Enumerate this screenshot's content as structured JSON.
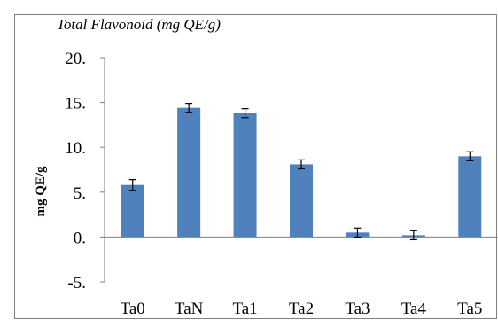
{
  "chart_data": {
    "type": "bar",
    "title": "Total Flavonoid (mg QE/g)",
    "xlabel": "",
    "ylabel": "mg QE/g",
    "categories": [
      "Ta0",
      "TaN",
      "Ta1",
      "Ta2",
      "Ta3",
      "Ta4",
      "Ta5"
    ],
    "values": [
      5.8,
      14.4,
      13.8,
      8.1,
      0.5,
      0.2,
      9.0
    ],
    "errors": [
      0.6,
      0.5,
      0.5,
      0.5,
      0.5,
      0.5,
      0.5
    ],
    "ylim": [
      -5,
      20
    ],
    "yticks": [
      -5,
      0,
      5,
      10,
      15,
      20
    ],
    "ytick_labels": [
      "-5.",
      "0.",
      "5.",
      "10.",
      "15.",
      "20."
    ],
    "grid": false,
    "legend": "none",
    "colors": {
      "bar": "#4f81bd",
      "axis": "#7f7f7f",
      "error": "#000000"
    }
  }
}
